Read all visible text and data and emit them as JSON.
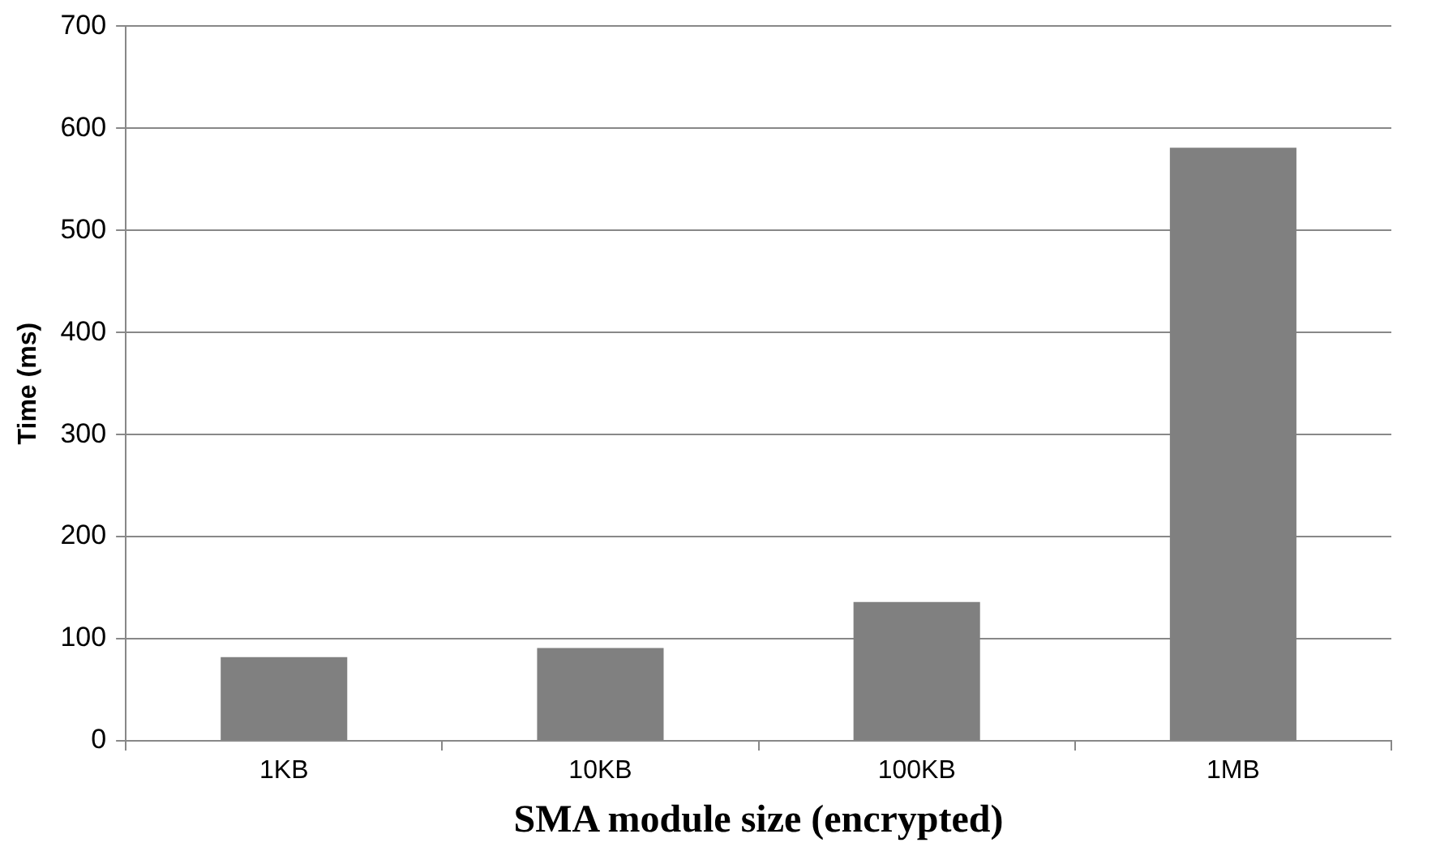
{
  "chart_data": {
    "type": "bar",
    "xlabel": "SMA module size (encrypted)",
    "ylabel": "Time (ms)",
    "categories": [
      "1KB",
      "10KB",
      "100KB",
      "1MB"
    ],
    "values": [
      82,
      91,
      136,
      581
    ],
    "color": "#808080",
    "ylim": [
      0,
      700
    ],
    "yticks": [
      0,
      100,
      200,
      300,
      400,
      500,
      600,
      700
    ],
    "grid": "y",
    "legend": false
  }
}
